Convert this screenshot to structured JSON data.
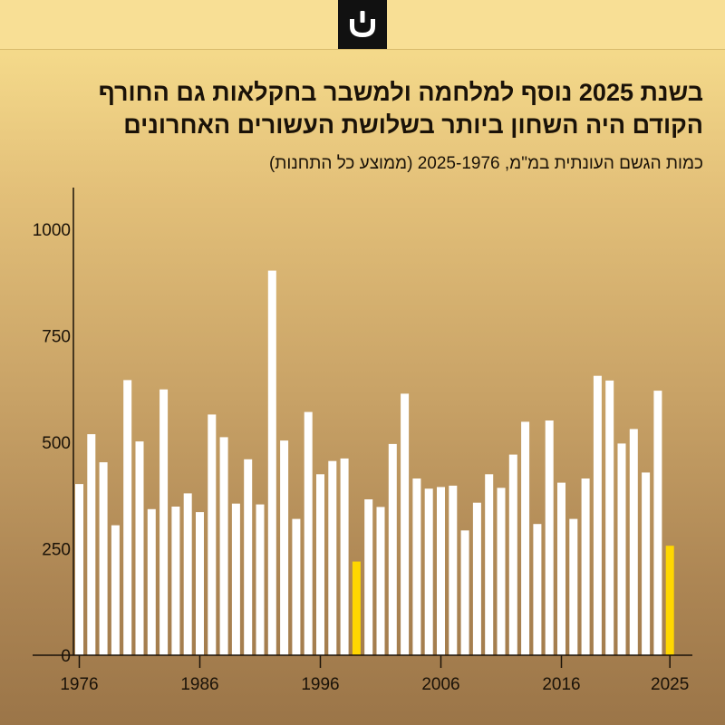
{
  "header": {
    "logo_icon": "candle-logo-icon"
  },
  "title": "בשנת 2025 נוסף למלחמה ולמשבר בחקלאות גם החורף הקודם היה השחון ביותר בשלושת העשורים האחרונים",
  "subtitle": "כמות הגשם העונתית במ\"מ, 2025-1976 (ממוצע כל התחנות)",
  "colors": {
    "bar": "#ffffff",
    "highlight": "#ffd700",
    "axis": "#1a1208"
  },
  "chart_data": {
    "type": "bar",
    "title": "",
    "xlabel": "",
    "ylabel": "",
    "x": [
      1976,
      1977,
      1978,
      1979,
      1980,
      1981,
      1982,
      1983,
      1984,
      1985,
      1986,
      1987,
      1988,
      1989,
      1990,
      1991,
      1992,
      1993,
      1994,
      1995,
      1996,
      1997,
      1998,
      1999,
      2000,
      2001,
      2002,
      2003,
      2004,
      2005,
      2006,
      2007,
      2008,
      2009,
      2010,
      2011,
      2012,
      2013,
      2014,
      2015,
      2016,
      2017,
      2018,
      2019,
      2020,
      2021,
      2022,
      2023,
      2024,
      2025
    ],
    "values": [
      402,
      519,
      453,
      305,
      646,
      502,
      343,
      624,
      349,
      380,
      336,
      565,
      512,
      356,
      460,
      354,
      903,
      504,
      320,
      571,
      425,
      456,
      462,
      220,
      366,
      348,
      496,
      614,
      415,
      391,
      395,
      398,
      293,
      358,
      425,
      393,
      471,
      548,
      308,
      551,
      405,
      320,
      415,
      656,
      645,
      497,
      531,
      429,
      621,
      257
    ],
    "highlight_years": [
      1999,
      2025
    ],
    "ylim": [
      0,
      1050
    ],
    "y_ticks": [
      0,
      250,
      500,
      750,
      1000
    ],
    "x_tick_labels": [
      1976,
      1986,
      1996,
      2006,
      2016,
      2025
    ]
  }
}
